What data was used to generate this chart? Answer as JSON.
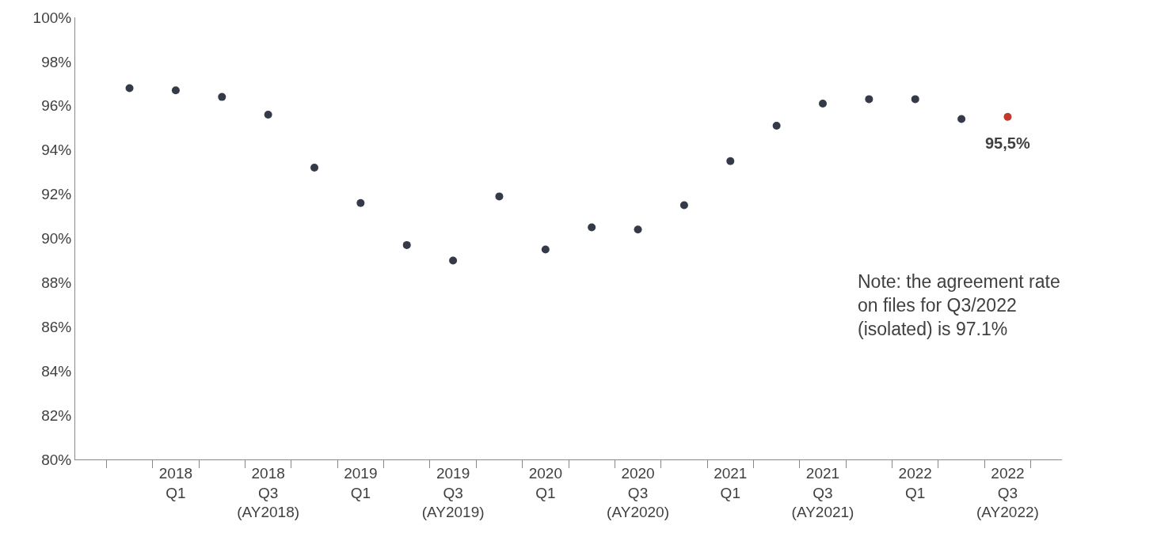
{
  "chart_data": {
    "type": "scatter",
    "categories": [
      null,
      "2018\nQ1",
      null,
      "2018\nQ3\n(AY2018)",
      null,
      "2019\nQ1",
      null,
      "2019\nQ3\n(AY2019)",
      null,
      "2020\nQ1",
      null,
      "2020\nQ3\n(AY2020)",
      null,
      "2021\nQ1",
      null,
      "2021\nQ3\n(AY2021)",
      null,
      "2022\nQ1",
      null,
      "2022\nQ3\n(AY2022)"
    ],
    "values": [
      96.8,
      96.7,
      96.4,
      95.6,
      93.2,
      91.6,
      89.7,
      89.0,
      91.9,
      89.5,
      90.5,
      90.4,
      91.5,
      93.5,
      95.1,
      96.1,
      96.3,
      96.3,
      95.4,
      95.5
    ],
    "colors": [
      "#353a48",
      "#353a48",
      "#353a48",
      "#353a48",
      "#353a48",
      "#353a48",
      "#353a48",
      "#353a48",
      "#353a48",
      "#353a48",
      "#353a48",
      "#353a48",
      "#353a48",
      "#353a48",
      "#353a48",
      "#353a48",
      "#353a48",
      "#353a48",
      "#353a48",
      "#c0392b"
    ],
    "value_labels": [
      null,
      null,
      null,
      null,
      null,
      null,
      null,
      null,
      null,
      null,
      null,
      null,
      null,
      null,
      null,
      null,
      null,
      null,
      null,
      "95,5%"
    ],
    "ylim": [
      80,
      100
    ],
    "yticks": [
      {
        "value": 80,
        "label": "80%"
      },
      {
        "value": 82,
        "label": "82%"
      },
      {
        "value": 84,
        "label": "84%"
      },
      {
        "value": 86,
        "label": "86%"
      },
      {
        "value": 88,
        "label": "88%"
      },
      {
        "value": 90,
        "label": "90%"
      },
      {
        "value": 92,
        "label": "92%"
      },
      {
        "value": 94,
        "label": "94%"
      },
      {
        "value": 96,
        "label": "96%"
      },
      {
        "value": 98,
        "label": "98%"
      },
      {
        "value": 100,
        "label": "100%"
      }
    ],
    "annotations": [
      "Note: the agreement rate\non files for Q3/2022\n(isolated) is 97.1%"
    ],
    "grid": false,
    "marker": "circle"
  }
}
